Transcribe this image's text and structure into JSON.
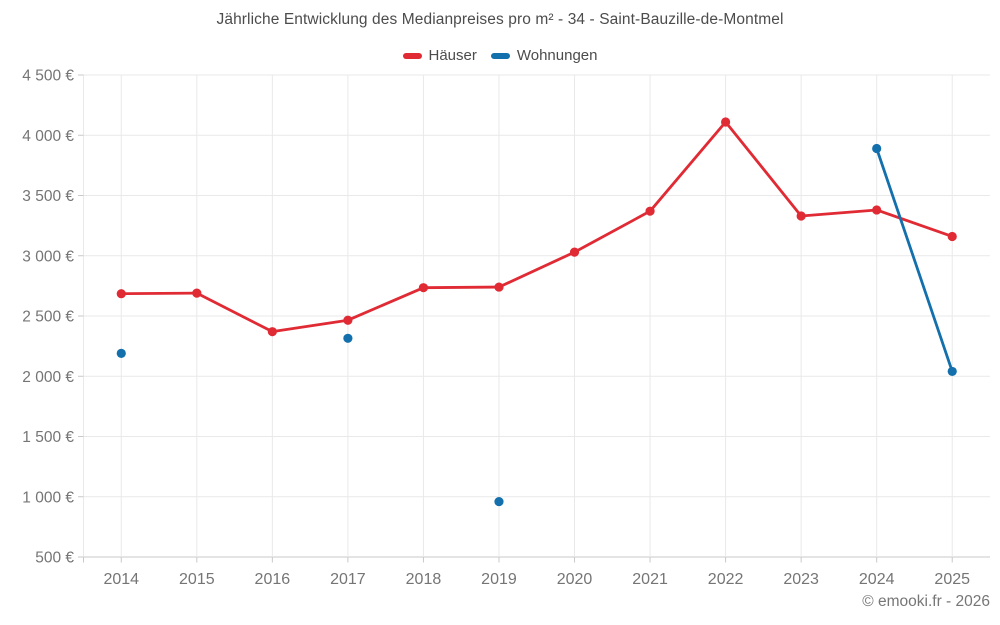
{
  "title": "Jährliche Entwicklung des Medianpreises pro m² - 34 - Saint-Bauzille-de-Montmel",
  "copyright": "© emooki.fr - 2026",
  "colors": {
    "haeuser_red": "#e02b35",
    "wohnungen_blue": "#1470ad",
    "grid_line": "#e9e9e9",
    "axis_line": "#c9c9c9",
    "tick_label_text": "#757575",
    "title_text": "#4c4c4c"
  },
  "chart_data": {
    "type": "line",
    "title": "Jährliche Entwicklung des Medianpreises pro m² - 34 - Saint-Bauzille-de-Montmel",
    "xlabel": "",
    "ylabel": "",
    "x": [
      "2014",
      "2015",
      "2016",
      "2017",
      "2018",
      "2019",
      "2020",
      "2021",
      "2022",
      "2023",
      "2024",
      "2025"
    ],
    "series": [
      {
        "name": "Häuser",
        "color": "#e02b35",
        "values": [
          2685,
          2690,
          2370,
          2465,
          2735,
          2740,
          3030,
          3370,
          4110,
          3330,
          3380,
          3160
        ]
      },
      {
        "name": "Wohnungen",
        "color": "#1470ad",
        "values": [
          2190,
          null,
          null,
          2315,
          null,
          960,
          null,
          null,
          null,
          null,
          3890,
          2040
        ]
      }
    ],
    "ylim": [
      500,
      4500
    ],
    "yticks": [
      {
        "value": 500,
        "label": "500 €"
      },
      {
        "value": 1000,
        "label": "1 000 €"
      },
      {
        "value": 1500,
        "label": "1 500 €"
      },
      {
        "value": 2000,
        "label": "2 000 €"
      },
      {
        "value": 2500,
        "label": "2 500 €"
      },
      {
        "value": 3000,
        "label": "3 000 €"
      },
      {
        "value": 3500,
        "label": "3 500 €"
      },
      {
        "value": 4000,
        "label": "4 000 €"
      },
      {
        "value": 4500,
        "label": "4 500 €"
      }
    ],
    "grid": true,
    "legend_position": "top"
  }
}
